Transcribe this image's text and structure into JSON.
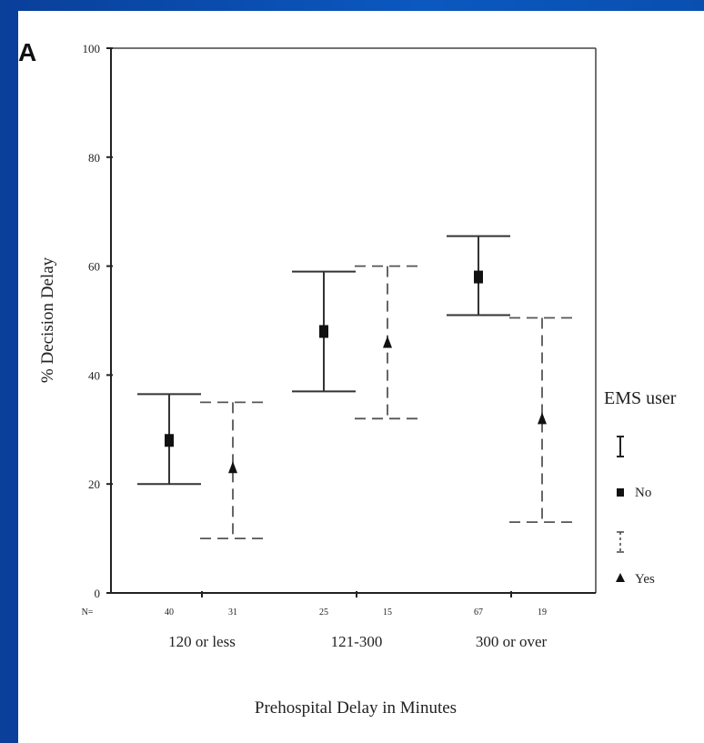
{
  "panel_letter": "A",
  "chart_data": {
    "type": "scatter",
    "ylabel": "% Decision Delay",
    "xlabel": "Prehospital Delay in Minutes",
    "ylim": [
      0,
      100
    ],
    "yticks": [
      0,
      20,
      40,
      60,
      80,
      100
    ],
    "categories": [
      "120 or less",
      "121-300",
      "300 or over"
    ],
    "n_prefix": "N=",
    "legend": {
      "title": "EMS user",
      "position": "right"
    },
    "series": [
      {
        "name": "No",
        "marker": "square",
        "line": "solid",
        "mean": [
          28,
          48,
          58
        ],
        "lower": [
          20,
          37,
          51
        ],
        "upper": [
          36.5,
          59,
          65.5
        ],
        "n": [
          "40",
          "25",
          "67"
        ]
      },
      {
        "name": "Yes",
        "marker": "triangle",
        "line": "dashed",
        "mean": [
          23,
          46,
          32
        ],
        "lower": [
          10,
          32,
          13
        ],
        "upper": [
          35,
          60,
          50.5
        ],
        "n": [
          "31",
          "15",
          "19"
        ]
      }
    ],
    "grid": false
  }
}
